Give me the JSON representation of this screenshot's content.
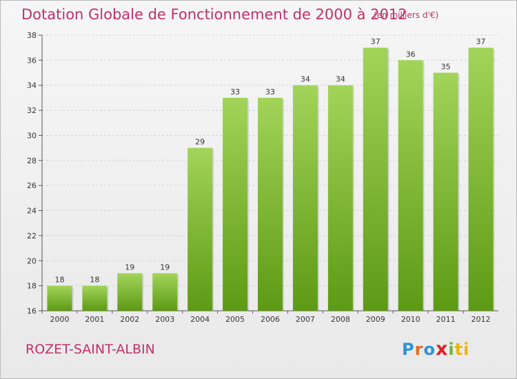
{
  "header": {
    "title": "Dotation Globale de Fonctionnement de 2000 à 2012",
    "subtitle": "(en milliers d'€)"
  },
  "footer": {
    "commune": "ROZET-SAINT-ALBIN",
    "logo_letters": [
      "P",
      "r",
      "o",
      "x",
      "i",
      "ti"
    ]
  },
  "chart_data": {
    "type": "bar",
    "title": "Dotation Globale de Fonctionnement de 2000 à 2012",
    "subtitle": "(en milliers d'€)",
    "xlabel": "",
    "ylabel": "",
    "categories": [
      "2000",
      "2001",
      "2002",
      "2003",
      "2004",
      "2005",
      "2006",
      "2007",
      "2008",
      "2009",
      "2010",
      "2011",
      "2012"
    ],
    "values": [
      18,
      18,
      19,
      19,
      29,
      33,
      33,
      34,
      34,
      37,
      36,
      35,
      37
    ],
    "value_labels": [
      "18",
      "18",
      "19",
      "19",
      "29",
      "33",
      "33",
      "34",
      "34",
      "37",
      "36",
      "35",
      "37"
    ],
    "ylim": [
      16,
      38
    ],
    "yticks": [
      16,
      18,
      20,
      22,
      24,
      26,
      28,
      30,
      32,
      34,
      36,
      38
    ],
    "grid": "horizontal-dashed",
    "colors": {
      "bar_top": "#a2d45a",
      "bar_bottom": "#5d9a14",
      "grid": "#cfcfcf",
      "text_accent": "#c0306a"
    }
  }
}
